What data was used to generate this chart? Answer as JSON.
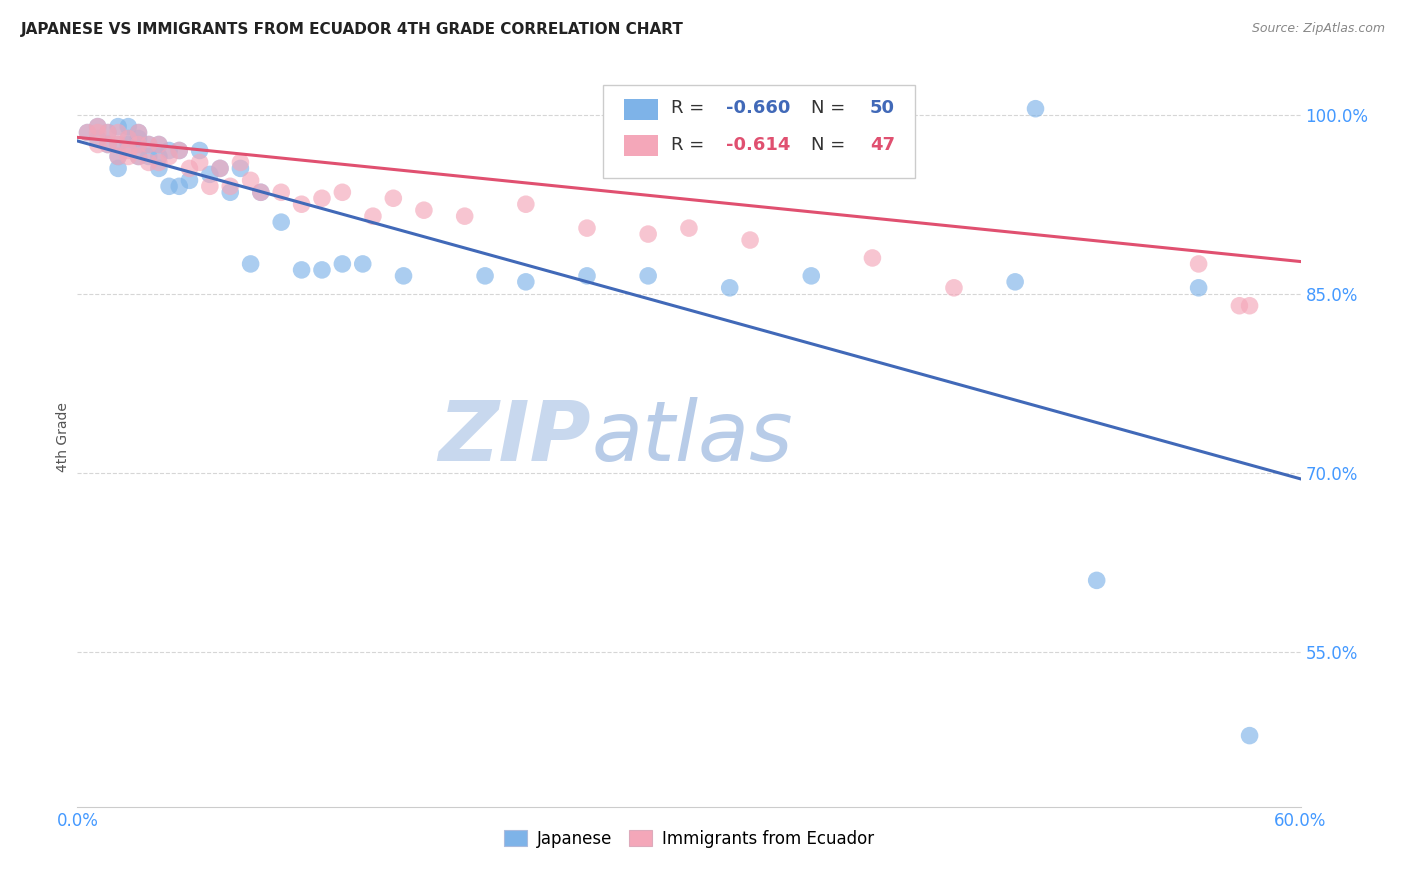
{
  "title": "JAPANESE VS IMMIGRANTS FROM ECUADOR 4TH GRADE CORRELATION CHART",
  "source": "Source: ZipAtlas.com",
  "ylabel": "4th Grade",
  "xlim": [
    0.0,
    0.6
  ],
  "ylim": [
    0.42,
    1.04
  ],
  "yticks": [
    0.55,
    0.7,
    0.85,
    1.0
  ],
  "ytick_labels": [
    "55.0%",
    "70.0%",
    "85.0%",
    "100.0%"
  ],
  "xticks": [
    0.0,
    0.1,
    0.2,
    0.3,
    0.4,
    0.5,
    0.6
  ],
  "xtick_labels": [
    "0.0%",
    "",
    "",
    "",
    "",
    "",
    "60.0%"
  ],
  "blue_color": "#7EB3E8",
  "pink_color": "#F4A7B9",
  "blue_line_color": "#4169B8",
  "pink_line_color": "#E05070",
  "blue_r": "-0.660",
  "blue_n": "50",
  "pink_r": "-0.614",
  "pink_n": "47",
  "watermark_zip": "ZIP",
  "watermark_atlas": "atlas",
  "blue_scatter_x": [
    0.005,
    0.01,
    0.01,
    0.015,
    0.015,
    0.02,
    0.02,
    0.02,
    0.02,
    0.025,
    0.025,
    0.025,
    0.03,
    0.03,
    0.03,
    0.03,
    0.035,
    0.035,
    0.04,
    0.04,
    0.04,
    0.045,
    0.045,
    0.05,
    0.05,
    0.055,
    0.06,
    0.065,
    0.07,
    0.075,
    0.08,
    0.085,
    0.09,
    0.1,
    0.11,
    0.12,
    0.13,
    0.14,
    0.16,
    0.2,
    0.22,
    0.25,
    0.28,
    0.32,
    0.36,
    0.46,
    0.47,
    0.5,
    0.55,
    0.575
  ],
  "blue_scatter_y": [
    0.985,
    0.99,
    0.98,
    0.985,
    0.975,
    0.99,
    0.975,
    0.965,
    0.955,
    0.99,
    0.98,
    0.975,
    0.985,
    0.98,
    0.975,
    0.965,
    0.975,
    0.965,
    0.975,
    0.965,
    0.955,
    0.97,
    0.94,
    0.97,
    0.94,
    0.945,
    0.97,
    0.95,
    0.955,
    0.935,
    0.955,
    0.875,
    0.935,
    0.91,
    0.87,
    0.87,
    0.875,
    0.875,
    0.865,
    0.865,
    0.86,
    0.865,
    0.865,
    0.855,
    0.865,
    0.86,
    1.005,
    0.61,
    0.855,
    0.48
  ],
  "pink_scatter_x": [
    0.005,
    0.01,
    0.01,
    0.01,
    0.015,
    0.015,
    0.02,
    0.02,
    0.02,
    0.025,
    0.025,
    0.025,
    0.03,
    0.03,
    0.03,
    0.035,
    0.035,
    0.04,
    0.04,
    0.045,
    0.05,
    0.055,
    0.06,
    0.065,
    0.07,
    0.075,
    0.08,
    0.085,
    0.09,
    0.1,
    0.11,
    0.12,
    0.13,
    0.145,
    0.155,
    0.17,
    0.19,
    0.22,
    0.25,
    0.28,
    0.3,
    0.33,
    0.39,
    0.43,
    0.55,
    0.57,
    0.575
  ],
  "pink_scatter_y": [
    0.985,
    0.99,
    0.985,
    0.975,
    0.985,
    0.975,
    0.985,
    0.975,
    0.965,
    0.98,
    0.97,
    0.965,
    0.985,
    0.975,
    0.965,
    0.975,
    0.96,
    0.975,
    0.96,
    0.965,
    0.97,
    0.955,
    0.96,
    0.94,
    0.955,
    0.94,
    0.96,
    0.945,
    0.935,
    0.935,
    0.925,
    0.93,
    0.935,
    0.915,
    0.93,
    0.92,
    0.915,
    0.925,
    0.905,
    0.9,
    0.905,
    0.895,
    0.88,
    0.855,
    0.875,
    0.84,
    0.84
  ],
  "blue_line_x": [
    0.0,
    0.6
  ],
  "blue_line_y": [
    0.978,
    0.695
  ],
  "pink_line_x": [
    0.0,
    0.6
  ],
  "pink_line_y": [
    0.981,
    0.877
  ]
}
